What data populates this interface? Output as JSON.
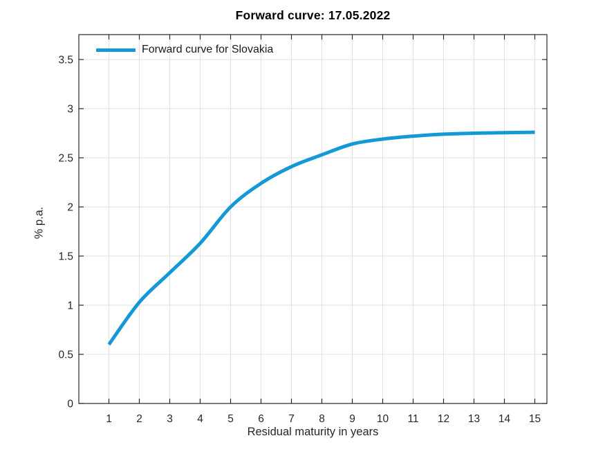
{
  "figure": {
    "background": "#ffffff"
  },
  "chart_data": {
    "type": "line",
    "title": "Forward curve: 17.05.2022",
    "xlabel": "Residual maturity in years",
    "ylabel": "% p.a.",
    "x": [
      1,
      2,
      3,
      4,
      5,
      6,
      7,
      8,
      9,
      10,
      11,
      12,
      13,
      14,
      15
    ],
    "series": [
      {
        "name": "Forward curve for Slovakia",
        "color": "#1499d6",
        "line_width": 5,
        "values": [
          0.6,
          1.03,
          1.33,
          1.63,
          2.0,
          2.24,
          2.41,
          2.53,
          2.64,
          2.69,
          2.72,
          2.74,
          2.75,
          2.755,
          2.76
        ]
      }
    ],
    "xlim": [
      0,
      15.5
    ],
    "ylim": [
      0,
      3.75
    ],
    "xticks": [
      1,
      2,
      3,
      4,
      5,
      6,
      7,
      8,
      9,
      10,
      11,
      12,
      13,
      14,
      15
    ],
    "yticks": [
      0,
      0.5,
      1,
      1.5,
      2,
      2.5,
      3,
      3.5
    ],
    "ytick_labels": [
      "0",
      "0.5",
      "1",
      "1.5",
      "2",
      "2.5",
      "3",
      "3.5"
    ],
    "grid": true,
    "legend": {
      "position": "top-left",
      "box": false
    },
    "colors": {
      "axis": "#262626",
      "grid": "#e2e2e2",
      "tick_label": "#262626"
    }
  }
}
